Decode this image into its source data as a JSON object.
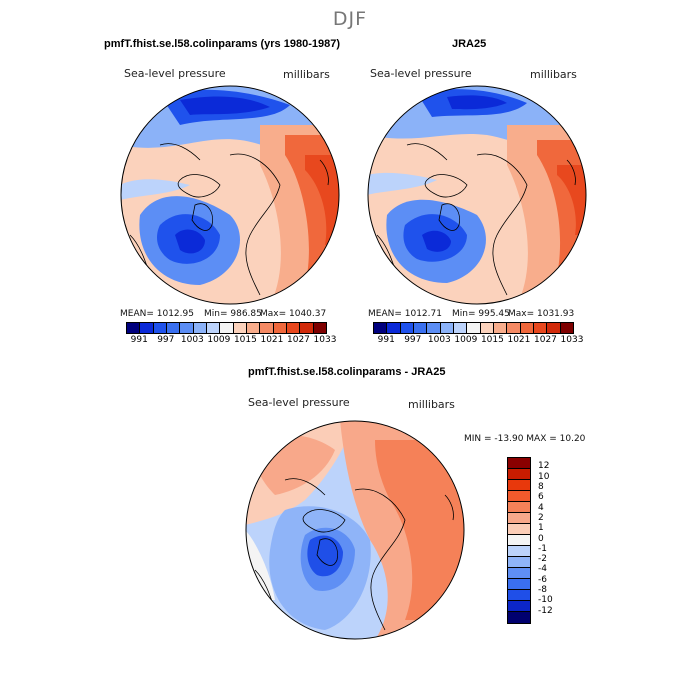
{
  "figure": {
    "title": "DJF"
  },
  "panels": {
    "model": {
      "title": "pmfT.fhist.se.l58.colinparams (yrs 1980-1987)",
      "variable": "Sea-level pressure",
      "units": "millibars",
      "mean": "MEAN= 1012.95",
      "min": "Min= 986.85",
      "max": "Max= 1040.37",
      "colorbar_ticks": [
        "991",
        "997",
        "1003",
        "1009",
        "1015",
        "1021",
        "1027",
        "1033"
      ]
    },
    "obs": {
      "title": "JRA25",
      "variable": "Sea-level pressure",
      "units": "millibars",
      "mean": "MEAN= 1012.71",
      "min": "Min= 995.45",
      "max": "Max= 1031.93",
      "colorbar_ticks": [
        "991",
        "997",
        "1003",
        "1009",
        "1015",
        "1021",
        "1027",
        "1033"
      ]
    },
    "diff": {
      "title": "pmfT.fhist.se.l58.colinparams - JRA25",
      "variable": "Sea-level pressure",
      "units": "millibars",
      "minmax": "MIN = -13.90 MAX =  10.20",
      "colorbar_ticks": [
        "12",
        "10",
        "8",
        "6",
        "4",
        "2",
        "1",
        "0",
        "-1",
        "-2",
        "-4",
        "-6",
        "-8",
        "-10",
        "-12"
      ]
    }
  },
  "colors": {
    "abs_scale": [
      "#00007e",
      "#0b2ad8",
      "#1f52ec",
      "#3a70f0",
      "#5c8ef5",
      "#8bb2f8",
      "#bcd3fb",
      "#f4f4f4",
      "#fbd2bc",
      "#f8ad8c",
      "#f58a64",
      "#f0683c",
      "#e8481e",
      "#d12a0a",
      "#7e0000"
    ],
    "diff_scale": [
      "#8a0000",
      "#c81c00",
      "#e8380c",
      "#f25a2c",
      "#f58158",
      "#f8a88a",
      "#fbcdb7",
      "#f4f4f4",
      "#bcd3fb",
      "#8fb4f8",
      "#5f8ff4",
      "#3a6ff0",
      "#1f4fe8",
      "#0c26c8",
      "#00006f"
    ]
  }
}
